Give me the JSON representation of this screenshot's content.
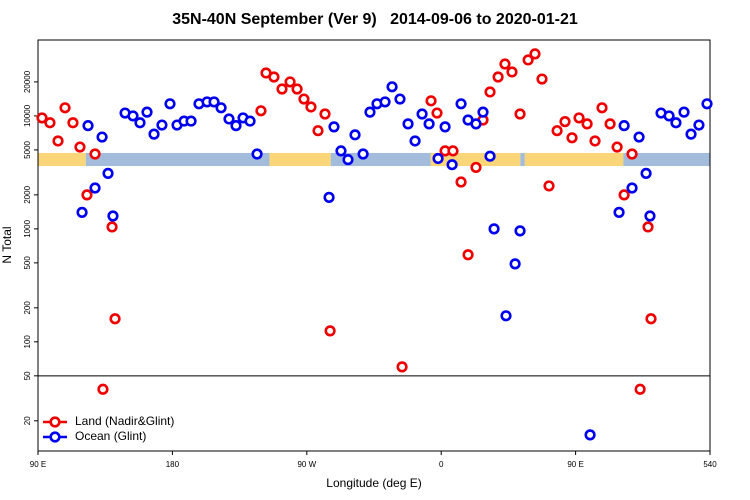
{
  "chart_data": {
    "type": "scatter",
    "title": "35N-40N September (Ver 9)   2014-09-06 to 2020-01-21",
    "xlabel": "Longitude (deg E)",
    "ylabel": "N Total",
    "log_y": true,
    "xlim": [
      90,
      540
    ],
    "ylim": [
      10.8,
      47000
    ],
    "xticks": [
      {
        "value": 90,
        "label": "90 E"
      },
      180,
      {
        "value": 270,
        "label": "90 W"
      },
      {
        "value": 360,
        "label": "0"
      },
      {
        "value": 450,
        "label": "90 E"
      },
      540
    ],
    "yticks": [
      20,
      50,
      100,
      200,
      500,
      1000,
      2000,
      5000,
      10000,
      20000
    ],
    "hline": 50,
    "legend": "lower-left",
    "band": {
      "range": [
        3600,
        4700
      ],
      "segments": [
        {
          "from": 90,
          "to": 122,
          "color": "#fbd679"
        },
        {
          "from": 122,
          "to": 245,
          "color": "#a3bcdc"
        },
        {
          "from": 245,
          "to": 286,
          "color": "#fbd679"
        },
        {
          "from": 286,
          "to": 353,
          "color": "#a3bcdc"
        },
        {
          "from": 353,
          "to": 413,
          "color": "#fbd679"
        },
        {
          "from": 413,
          "to": 416,
          "color": "#a3bcdc"
        },
        {
          "from": 416,
          "to": 482,
          "color": "#fbd679"
        },
        {
          "from": 482,
          "to": 540,
          "color": "#a3bcdc"
        }
      ]
    },
    "series": [
      {
        "name": "Land (Nadir&Glint)",
        "color": "#ee0000",
        "x": [
          92.7,
          98.0,
          103.4,
          108.1,
          113.4,
          118.1,
          122.8,
          128.2,
          133.5,
          139.6,
          141.6,
          239.3,
          242.7,
          248.0,
          253.4,
          258.8,
          263.5,
          268.1,
          272.8,
          277.5,
          282.2,
          285.6,
          333.8,
          353.2,
          357.2,
          362.6,
          367.9,
          373.3,
          378.0,
          383.3,
          388.0,
          392.7,
          398.1,
          402.7,
          407.4,
          412.8,
          418.2,
          422.8,
          427.5,
          432.2,
          437.6,
          442.9,
          447.6,
          452.3,
          457.7,
          463.0,
          467.7,
          473.1,
          477.8,
          482.5,
          487.8,
          493.2,
          498.5,
          500.5
        ],
        "values": [
          9600,
          8700,
          6000,
          11800,
          8700,
          5300,
          2000,
          4600,
          38,
          1040,
          160,
          11100,
          24000,
          22100,
          17300,
          20000,
          17300,
          14100,
          12000,
          7400,
          10400,
          125,
          60,
          13600,
          10600,
          4900,
          4900,
          2600,
          590,
          3500,
          9200,
          16300,
          22100,
          28800,
          24500,
          10400,
          31300,
          35400,
          21200,
          2400,
          7400,
          8900,
          6400,
          9600,
          8500,
          6000,
          11800,
          8500,
          5300,
          2000,
          4600,
          38,
          1040,
          160
        ]
      },
      {
        "name": "Ocean (Glint)",
        "color": "#0000ee",
        "x": [
          119.5,
          123.5,
          128.2,
          132.9,
          136.9,
          140.2,
          148.3,
          153.6,
          158.3,
          163.0,
          167.7,
          173.0,
          178.4,
          183.1,
          187.8,
          192.5,
          197.8,
          203.2,
          207.9,
          212.6,
          217.9,
          222.6,
          227.3,
          232.0,
          236.7,
          284.9,
          288.2,
          292.9,
          297.6,
          302.3,
          307.7,
          312.3,
          317.0,
          322.4,
          327.1,
          332.4,
          337.8,
          342.5,
          347.2,
          351.9,
          357.9,
          362.6,
          367.3,
          373.3,
          378.0,
          383.3,
          388.0,
          392.7,
          395.4,
          403.4,
          409.5,
          412.8,
          459.7,
          479.1,
          482.5,
          487.8,
          492.5,
          497.2,
          499.8,
          507.2,
          512.6,
          517.2,
          522.6,
          527.3,
          532.6,
          538.0
        ],
        "values": [
          1400,
          8200,
          2300,
          6500,
          3100,
          1300,
          10600,
          10000,
          8700,
          10800,
          6900,
          8300,
          12800,
          8300,
          9000,
          9000,
          12800,
          13300,
          13300,
          11800,
          9400,
          8200,
          9600,
          9000,
          4600,
          1900,
          8000,
          4900,
          4100,
          6800,
          4600,
          10800,
          12800,
          13300,
          18100,
          14100,
          8500,
          6000,
          10400,
          8500,
          4200,
          8000,
          3700,
          12800,
          9200,
          8500,
          10800,
          4400,
          1000,
          170,
          490,
          960,
          15,
          1400,
          8200,
          2300,
          6500,
          3100,
          1300,
          10600,
          10000,
          8700,
          10800,
          6900,
          8300,
          12800
        ]
      }
    ]
  }
}
